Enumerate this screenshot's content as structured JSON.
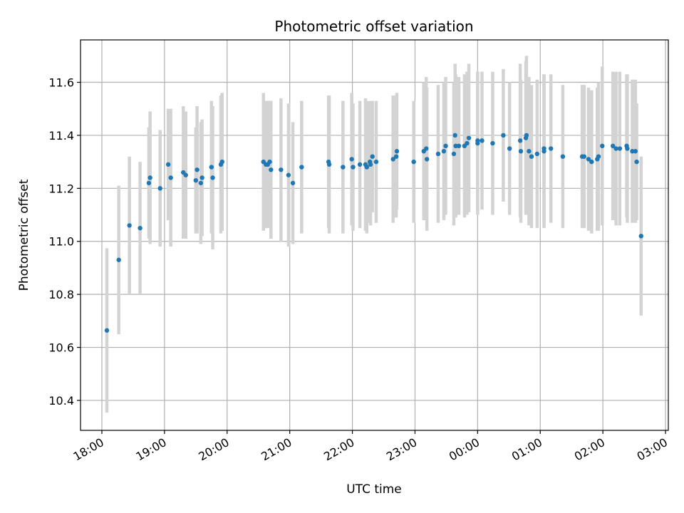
{
  "chart_data": {
    "type": "scatter",
    "title": "Photometric offset variation",
    "xlabel": "UTC time",
    "ylabel": "Photometric offset",
    "x_units": "hours since 18:00 UTC",
    "xlim": [
      -0.341,
      9.045
    ],
    "ylim": [
      10.287,
      11.76
    ],
    "grid": true,
    "x_ticks": [
      0,
      1,
      2,
      3,
      4,
      5,
      6,
      7,
      8,
      9
    ],
    "x_tick_labels": [
      "18:00",
      "19:00",
      "20:00",
      "21:00",
      "22:00",
      "23:00",
      "00:00",
      "01:00",
      "02:00",
      "03:00"
    ],
    "y_ticks": [
      10.4,
      10.6,
      10.8,
      11.0,
      11.2,
      11.4,
      11.6
    ],
    "y_tick_labels": [
      "10.4",
      "10.6",
      "10.8",
      "11.0",
      "11.2",
      "11.4",
      "11.6"
    ],
    "colors": {
      "point": "#1f77b4",
      "errorbar": "#d3d3d3",
      "grid": "#b0b0b0"
    },
    "series": [
      {
        "name": "offset",
        "x": [
          0.08,
          0.27,
          0.44,
          0.61,
          0.75,
          0.77,
          0.93,
          1.06,
          1.1,
          1.3,
          1.34,
          1.5,
          1.52,
          1.58,
          1.6,
          1.75,
          1.77,
          1.9,
          1.92,
          2.58,
          2.62,
          2.65,
          2.68,
          2.7,
          2.86,
          2.98,
          3.05,
          3.19,
          3.62,
          3.63,
          3.85,
          3.99,
          4.01,
          4.12,
          4.21,
          4.23,
          4.28,
          4.29,
          4.32,
          4.38,
          4.65,
          4.7,
          4.71,
          4.98,
          5.14,
          5.18,
          5.19,
          5.37,
          5.46,
          5.49,
          5.62,
          5.64,
          5.65,
          5.7,
          5.79,
          5.83,
          5.86,
          6.0,
          6.0,
          6.07,
          6.24,
          6.41,
          6.51,
          6.68,
          6.69,
          6.77,
          6.78,
          6.82,
          6.86,
          6.95,
          7.06,
          7.06,
          7.17,
          7.36,
          7.67,
          7.7,
          7.77,
          7.82,
          7.91,
          7.93,
          7.99,
          8.16,
          8.21,
          8.27,
          8.38,
          8.39,
          8.47,
          8.52,
          8.54,
          8.61
        ],
        "y": [
          10.664,
          10.93,
          11.06,
          11.05,
          11.22,
          11.24,
          11.2,
          11.29,
          11.24,
          11.26,
          11.25,
          11.23,
          11.27,
          11.22,
          11.24,
          11.28,
          11.24,
          11.29,
          11.3,
          11.3,
          11.29,
          11.29,
          11.3,
          11.27,
          11.27,
          11.25,
          11.22,
          11.28,
          11.3,
          11.29,
          11.28,
          11.31,
          11.28,
          11.29,
          11.29,
          11.28,
          11.3,
          11.29,
          11.32,
          11.3,
          11.31,
          11.32,
          11.34,
          11.3,
          11.34,
          11.35,
          11.31,
          11.33,
          11.34,
          11.36,
          11.33,
          11.4,
          11.36,
          11.36,
          11.36,
          11.37,
          11.39,
          11.38,
          11.37,
          11.38,
          11.37,
          11.4,
          11.35,
          11.38,
          11.34,
          11.39,
          11.4,
          11.34,
          11.32,
          11.33,
          11.34,
          11.35,
          11.35,
          11.32,
          11.32,
          11.32,
          11.31,
          11.3,
          11.31,
          11.32,
          11.36,
          11.36,
          11.35,
          11.35,
          11.36,
          11.35,
          11.34,
          11.34,
          11.3,
          11.02
        ],
        "yerr": [
          0.31,
          0.28,
          0.26,
          0.25,
          0.21,
          0.25,
          0.22,
          0.21,
          0.26,
          0.25,
          0.24,
          0.2,
          0.24,
          0.23,
          0.22,
          0.25,
          0.27,
          0.26,
          0.26,
          0.26,
          0.24,
          0.24,
          0.23,
          0.26,
          0.27,
          0.27,
          0.23,
          0.25,
          0.25,
          0.26,
          0.25,
          0.25,
          0.24,
          0.24,
          0.25,
          0.25,
          0.23,
          0.23,
          0.21,
          0.23,
          0.24,
          0.23,
          0.22,
          0.23,
          0.26,
          0.27,
          0.27,
          0.26,
          0.26,
          0.26,
          0.27,
          0.27,
          0.27,
          0.26,
          0.27,
          0.27,
          0.28,
          0.26,
          0.27,
          0.26,
          0.27,
          0.25,
          0.25,
          0.29,
          0.27,
          0.29,
          0.3,
          0.28,
          0.27,
          0.28,
          0.29,
          0.28,
          0.28,
          0.27,
          0.27,
          0.27,
          0.27,
          0.27,
          0.27,
          0.28,
          0.3,
          0.28,
          0.29,
          0.29,
          0.27,
          0.28,
          0.27,
          0.27,
          0.22,
          0.3
        ]
      }
    ]
  }
}
